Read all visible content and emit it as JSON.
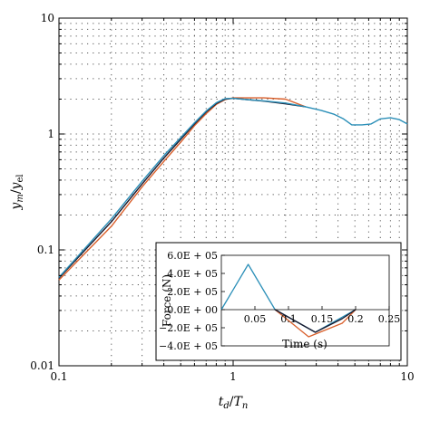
{
  "chart_data": [
    {
      "type": "line",
      "xscale": "log",
      "yscale": "log",
      "xlim": [
        0.1,
        10
      ],
      "ylim": [
        0.01,
        10
      ],
      "xticks": [
        0.1,
        1,
        10
      ],
      "yticks": [
        0.01,
        0.1,
        1,
        10
      ],
      "xtick_labels": [
        "0.1",
        "1",
        "10"
      ],
      "ytick_labels": [
        "0.01",
        "0.1",
        "1",
        "10"
      ],
      "xlabel": "t_d/T_n",
      "ylabel": "y_m/y_el",
      "grid": "dotted",
      "series": [
        {
          "color": "#d95f2b",
          "x": [
            0.1,
            0.2,
            0.3,
            0.4,
            0.5,
            0.6,
            0.7,
            0.8,
            0.9,
            1.0,
            1.2,
            1.5,
            2.0,
            2.6
          ],
          "y": [
            0.055,
            0.16,
            0.35,
            0.58,
            0.85,
            1.18,
            1.5,
            1.8,
            1.98,
            2.05,
            2.05,
            2.05,
            2.0,
            1.72
          ]
        },
        {
          "color": "#1a1a2e",
          "x": [
            0.1,
            0.2,
            0.3,
            0.4,
            0.5,
            0.6,
            0.7,
            0.8,
            0.9,
            1.0,
            1.2,
            1.5,
            2.0,
            2.6
          ],
          "y": [
            0.057,
            0.175,
            0.37,
            0.62,
            0.9,
            1.22,
            1.55,
            1.83,
            2.0,
            2.03,
            1.98,
            1.92,
            1.82,
            1.72
          ]
        },
        {
          "color": "#2b8fb8",
          "x": [
            0.1,
            0.2,
            0.3,
            0.4,
            0.5,
            0.6,
            0.7,
            0.8,
            0.9,
            1.0,
            1.2,
            1.5,
            2.0,
            2.6,
            3.2,
            3.8,
            4.3,
            4.8,
            5.5,
            6.2,
            7.0,
            8.0,
            9.0,
            10.0
          ],
          "y": [
            0.058,
            0.185,
            0.39,
            0.65,
            0.93,
            1.25,
            1.58,
            1.86,
            2.02,
            2.03,
            1.98,
            1.93,
            1.85,
            1.72,
            1.6,
            1.48,
            1.35,
            1.2,
            1.2,
            1.22,
            1.35,
            1.38,
            1.33,
            1.22
          ]
        }
      ]
    },
    {
      "type": "line",
      "xlim": [
        0,
        0.25
      ],
      "ylim": [
        -400000,
        600000
      ],
      "xticks": [
        0.05,
        0.1,
        0.15,
        0.2,
        0.25
      ],
      "xtick_labels": [
        "0.05",
        "0.1",
        "0.15",
        "0.2",
        "0.25"
      ],
      "yticks": [
        600000,
        400000,
        200000,
        0,
        -200000,
        -400000
      ],
      "ytick_labels": [
        "6.0E + 05",
        "4.0E + 05",
        "2.0E + 05",
        "0.0E + 00",
        "−2.0E + 05",
        "−4.0E + 05"
      ],
      "xlabel": "Time (s)",
      "ylabel": "Force (N)",
      "series": [
        {
          "color": "#2b8fb8",
          "x": [
            0.0,
            0.04,
            0.08,
            0.14,
            0.2
          ],
          "y": [
            0,
            500000,
            0,
            -250000,
            0
          ]
        },
        {
          "color": "#d95f2b",
          "x": [
            0.08,
            0.13,
            0.18,
            0.2
          ],
          "y": [
            0,
            -300000,
            -150000,
            0
          ]
        },
        {
          "color": "#1a1a2e",
          "x": [
            0.08,
            0.14,
            0.18,
            0.2
          ],
          "y": [
            0,
            -250000,
            -100000,
            0
          ]
        }
      ]
    }
  ]
}
